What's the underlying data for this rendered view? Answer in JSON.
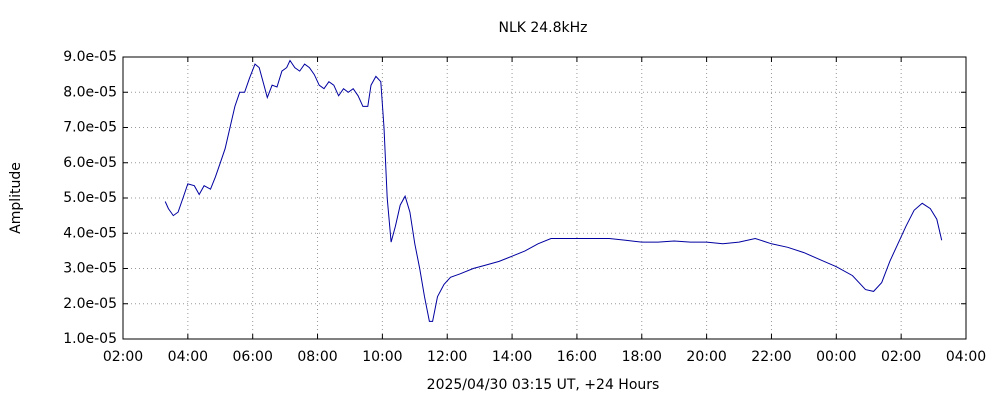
{
  "chart_data": {
    "type": "line",
    "title": "NLK 24.8kHz",
    "x_label": "2025/04/30 03:15 UT, +24 Hours",
    "y_label": "Amplitude",
    "xlim": [
      2,
      28
    ],
    "ylim": [
      1e-05,
      9e-05
    ],
    "grid": true,
    "xticks": [
      {
        "value": 2,
        "label": "02:00"
      },
      {
        "value": 4,
        "label": "04:00"
      },
      {
        "value": 6,
        "label": "06:00"
      },
      {
        "value": 8,
        "label": "08:00"
      },
      {
        "value": 10,
        "label": "10:00"
      },
      {
        "value": 12,
        "label": "12:00"
      },
      {
        "value": 14,
        "label": "14:00"
      },
      {
        "value": 16,
        "label": "16:00"
      },
      {
        "value": 18,
        "label": "18:00"
      },
      {
        "value": 20,
        "label": "20:00"
      },
      {
        "value": 22,
        "label": "22:00"
      },
      {
        "value": 24,
        "label": "00:00"
      },
      {
        "value": 26,
        "label": "02:00"
      },
      {
        "value": 28,
        "label": "04:00"
      }
    ],
    "yticks": [
      {
        "value": 1e-05,
        "label": "1.0e-05"
      },
      {
        "value": 2e-05,
        "label": "2.0e-05"
      },
      {
        "value": 3e-05,
        "label": "3.0e-05"
      },
      {
        "value": 4e-05,
        "label": "4.0e-05"
      },
      {
        "value": 5e-05,
        "label": "5.0e-05"
      },
      {
        "value": 6e-05,
        "label": "6.0e-05"
      },
      {
        "value": 7e-05,
        "label": "7.0e-05"
      },
      {
        "value": 8e-05,
        "label": "8.0e-05"
      },
      {
        "value": 9e-05,
        "label": "9.0e-05"
      }
    ],
    "color": "#0000a0",
    "x": [
      3.3,
      3.4,
      3.55,
      3.7,
      3.85,
      4.0,
      4.2,
      4.35,
      4.5,
      4.7,
      4.85,
      5.0,
      5.15,
      5.3,
      5.45,
      5.6,
      5.75,
      5.9,
      6.07,
      6.2,
      6.35,
      6.45,
      6.6,
      6.75,
      6.9,
      7.05,
      7.15,
      7.3,
      7.45,
      7.6,
      7.75,
      7.9,
      8.05,
      8.2,
      8.35,
      8.5,
      8.65,
      8.8,
      8.95,
      9.1,
      9.25,
      9.4,
      9.55,
      9.65,
      9.8,
      9.95,
      10.05,
      10.15,
      10.27,
      10.4,
      10.55,
      10.7,
      10.85,
      11.0,
      11.15,
      11.3,
      11.45,
      11.55,
      11.7,
      11.9,
      12.1,
      12.4,
      12.8,
      13.2,
      13.6,
      14.0,
      14.4,
      14.8,
      15.2,
      15.6,
      16.0,
      16.5,
      17.0,
      17.5,
      18.0,
      18.5,
      19.0,
      19.5,
      20.0,
      20.5,
      21.0,
      21.5,
      22.0,
      22.5,
      23.0,
      23.5,
      24.0,
      24.5,
      24.9,
      25.15,
      25.4,
      25.65,
      25.9,
      26.15,
      26.4,
      26.65,
      26.9,
      27.1,
      27.25
    ],
    "values": [
      4.9e-05,
      4.7e-05,
      4.5e-05,
      4.6e-05,
      5e-05,
      5.4e-05,
      5.35e-05,
      5.1e-05,
      5.35e-05,
      5.25e-05,
      5.6e-05,
      6e-05,
      6.4e-05,
      7e-05,
      7.6e-05,
      8e-05,
      8e-05,
      8.4e-05,
      8.8e-05,
      8.7e-05,
      8.2e-05,
      7.85e-05,
      8.2e-05,
      8.15e-05,
      8.6e-05,
      8.7e-05,
      8.9e-05,
      8.7e-05,
      8.6e-05,
      8.8e-05,
      8.7e-05,
      8.5e-05,
      8.2e-05,
      8.1e-05,
      8.3e-05,
      8.2e-05,
      7.9e-05,
      8.1e-05,
      8e-05,
      8.1e-05,
      7.9e-05,
      7.6e-05,
      7.6e-05,
      8.2e-05,
      8.45e-05,
      8.3e-05,
      7e-05,
      5e-05,
      3.75e-05,
      4.2e-05,
      4.8e-05,
      5.05e-05,
      4.6e-05,
      3.7e-05,
      3e-05,
      2.2e-05,
      1.5e-05,
      1.5e-05,
      2.2e-05,
      2.55e-05,
      2.75e-05,
      2.85e-05,
      3e-05,
      3.1e-05,
      3.2e-05,
      3.35e-05,
      3.5e-05,
      3.7e-05,
      3.85e-05,
      3.85e-05,
      3.85e-05,
      3.85e-05,
      3.85e-05,
      3.8e-05,
      3.75e-05,
      3.75e-05,
      3.78e-05,
      3.75e-05,
      3.75e-05,
      3.7e-05,
      3.75e-05,
      3.85e-05,
      3.7e-05,
      3.6e-05,
      3.45e-05,
      3.25e-05,
      3.05e-05,
      2.8e-05,
      2.4e-05,
      2.35e-05,
      2.6e-05,
      3.2e-05,
      3.7e-05,
      4.2e-05,
      4.65e-05,
      4.85e-05,
      4.7e-05,
      4.4e-05,
      3.8e-05
    ]
  }
}
